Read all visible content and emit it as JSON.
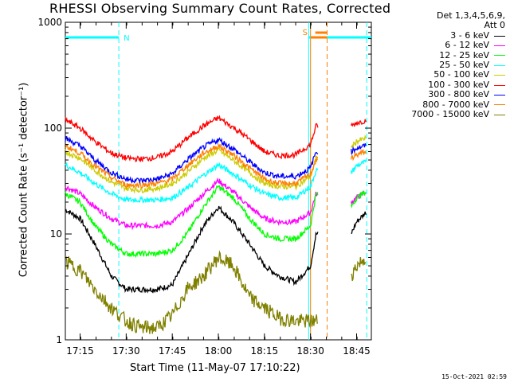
{
  "chart_data": {
    "type": "line",
    "title": "RHESSI Observing Summary Count Rates, Corrected",
    "xlabel": "Start Time (11-May-07 17:10:22)",
    "ylabel": "Corrected Count Rate (s⁻¹ detector⁻¹)",
    "yscale": "log",
    "ylim": [
      1,
      1000
    ],
    "xlim_minutes": [
      17.17,
      18.83
    ],
    "y_ticks": [
      "1",
      "10",
      "100",
      "1000"
    ],
    "x_ticks": [
      "17:15",
      "17:30",
      "17:45",
      "18:00",
      "18:15",
      "18:30",
      "18:45"
    ],
    "x_tick_values": [
      17.25,
      17.5,
      17.75,
      18.0,
      18.25,
      18.5,
      18.75
    ],
    "legend_header": [
      "Det 1,3,4,5,6,9,",
      "Att 0"
    ],
    "legend_position": "top-right",
    "gap": [
      18.6,
      18.72
    ],
    "annotations": [
      {
        "label": "N",
        "type": "night",
        "range": [
          17.17,
          17.46
        ],
        "color": "#00ffff"
      },
      {
        "label": "S",
        "type": "saa",
        "range": [
          18.5,
          18.59
        ],
        "color": "#ff7f00"
      }
    ],
    "vlines": [
      {
        "x": 17.46,
        "color": "#00ffff",
        "style": "dashed"
      },
      {
        "x": 18.49,
        "color": "#00ffff",
        "style": "solid"
      },
      {
        "x": 18.5,
        "color": "#ff7f00",
        "style": "solid"
      },
      {
        "x": 18.59,
        "color": "#ff7f00",
        "style": "dashed"
      },
      {
        "x": 18.805,
        "color": "#00ffff",
        "style": "dashed"
      }
    ],
    "series": [
      {
        "name": "3 - 6 keV",
        "color": "#000000",
        "x": [
          17.17,
          17.25,
          17.33,
          17.42,
          17.5,
          17.58,
          17.67,
          17.75,
          17.83,
          17.92,
          18.0,
          18.08,
          18.17,
          18.25,
          18.33,
          18.42,
          18.5,
          18.53,
          18.72,
          18.75,
          18.8
        ],
        "y": [
          17,
          14,
          8,
          4,
          3,
          3,
          3,
          3.3,
          6,
          12,
          18,
          13,
          8,
          5,
          4,
          3.5,
          5,
          10,
          10,
          13,
          16
        ]
      },
      {
        "name": "6 - 12 keV",
        "color": "#ff00ff",
        "x": [
          17.17,
          17.25,
          17.33,
          17.42,
          17.5,
          17.58,
          17.67,
          17.75,
          17.83,
          17.92,
          18.0,
          18.08,
          18.17,
          18.25,
          18.33,
          18.42,
          18.5,
          18.53,
          18.72,
          18.75,
          18.8
        ],
        "y": [
          28,
          24,
          18,
          14,
          12,
          12,
          12,
          13,
          17,
          24,
          32,
          25,
          18,
          14,
          13,
          13,
          16,
          24,
          20,
          22,
          25
        ]
      },
      {
        "name": "12 - 25 keV",
        "color": "#00ff00",
        "x": [
          17.17,
          17.25,
          17.33,
          17.42,
          17.5,
          17.58,
          17.67,
          17.75,
          17.83,
          17.92,
          18.0,
          18.08,
          18.17,
          18.25,
          18.33,
          18.42,
          18.5,
          18.53,
          18.72,
          18.75,
          18.8
        ],
        "y": [
          24,
          20,
          12,
          8,
          6.5,
          6.5,
          6.5,
          7,
          10,
          18,
          28,
          22,
          14,
          10,
          9,
          9,
          12,
          24,
          18,
          22,
          25
        ]
      },
      {
        "name": "25 - 50 keV",
        "color": "#00ffff",
        "x": [
          17.17,
          17.25,
          17.33,
          17.42,
          17.5,
          17.58,
          17.67,
          17.75,
          17.83,
          17.92,
          18.0,
          18.08,
          18.17,
          18.25,
          18.33,
          18.42,
          18.5,
          18.53,
          18.72,
          18.75,
          18.8
        ],
        "y": [
          45,
          38,
          30,
          24,
          21,
          21,
          21,
          22,
          27,
          36,
          45,
          37,
          29,
          24,
          22,
          22,
          28,
          40,
          38,
          44,
          48
        ]
      },
      {
        "name": "50 - 100 keV",
        "color": "#cccc00",
        "x": [
          17.17,
          17.25,
          17.33,
          17.42,
          17.5,
          17.58,
          17.67,
          17.75,
          17.83,
          17.92,
          18.0,
          18.08,
          18.17,
          18.25,
          18.33,
          18.42,
          18.5,
          18.53,
          18.72,
          18.75,
          18.8
        ],
        "y": [
          60,
          52,
          40,
          31,
          27,
          26,
          27,
          30,
          38,
          52,
          62,
          50,
          38,
          30,
          28,
          28,
          35,
          52,
          65,
          75,
          80
        ]
      },
      {
        "name": "100 - 300 keV",
        "color": "#ff0000",
        "x": [
          17.17,
          17.25,
          17.33,
          17.42,
          17.5,
          17.58,
          17.67,
          17.75,
          17.83,
          17.92,
          18.0,
          18.08,
          18.17,
          18.25,
          18.33,
          18.42,
          18.5,
          18.53,
          18.72,
          18.75,
          18.8
        ],
        "y": [
          120,
          100,
          75,
          58,
          52,
          51,
          53,
          60,
          80,
          105,
          125,
          102,
          78,
          60,
          55,
          56,
          70,
          105,
          105,
          112,
          118
        ]
      },
      {
        "name": "300 - 800 keV",
        "color": "#0000ff",
        "x": [
          17.17,
          17.25,
          17.33,
          17.42,
          17.5,
          17.58,
          17.67,
          17.75,
          17.83,
          17.92,
          18.0,
          18.08,
          18.17,
          18.25,
          18.33,
          18.42,
          18.5,
          18.53,
          18.72,
          18.75,
          18.8
        ],
        "y": [
          80,
          68,
          50,
          38,
          33,
          32,
          33,
          37,
          50,
          66,
          78,
          64,
          48,
          38,
          35,
          35,
          42,
          60,
          60,
          65,
          68
        ]
      },
      {
        "name": "800 - 7000 keV",
        "color": "#ff7f00",
        "x": [
          17.17,
          17.25,
          17.33,
          17.42,
          17.5,
          17.58,
          17.67,
          17.75,
          17.83,
          17.92,
          18.0,
          18.08,
          18.17,
          18.25,
          18.33,
          18.42,
          18.5,
          18.53,
          18.72,
          18.75,
          18.8
        ],
        "y": [
          68,
          58,
          44,
          34,
          29,
          29,
          30,
          33,
          44,
          58,
          68,
          56,
          42,
          33,
          30,
          30,
          37,
          50,
          52,
          56,
          60
        ]
      },
      {
        "name": "7000 - 15000 keV",
        "color": "#808000",
        "x": [
          17.17,
          17.25,
          17.33,
          17.42,
          17.5,
          17.58,
          17.67,
          17.75,
          17.83,
          17.92,
          18.0,
          18.08,
          18.17,
          18.25,
          18.33,
          18.42,
          18.5,
          18.53,
          18.72,
          18.75,
          18.8
        ],
        "y": [
          5.5,
          4.5,
          3,
          2,
          1.5,
          1.3,
          1.3,
          1.7,
          3,
          4,
          6,
          5,
          2.5,
          2,
          1.6,
          1.5,
          1.5,
          1.5,
          4,
          5,
          6
        ]
      }
    ]
  },
  "footer": "15-Oct-2021 02:59"
}
